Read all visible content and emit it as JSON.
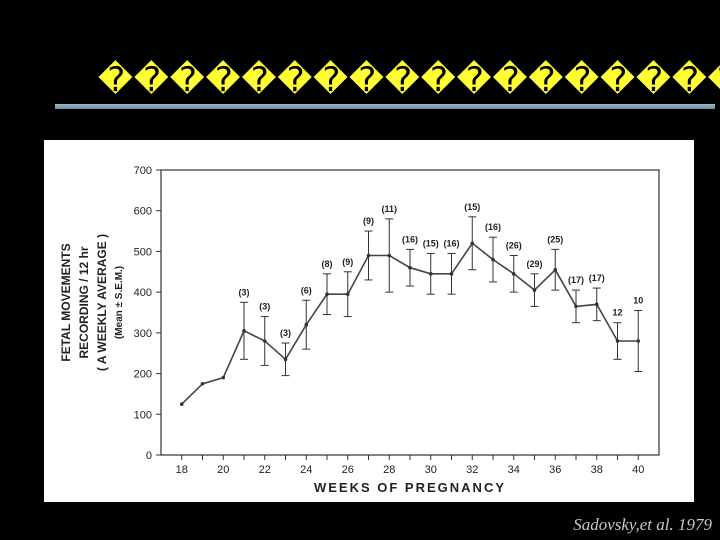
{
  "slide": {
    "title": "�����������������������",
    "citation": "Sadovsky,et al. 1979"
  },
  "chart_data": {
    "type": "line",
    "xlabel": "WEEKS OF PREGNANCY",
    "ylabel_lines": [
      "FETAL MOVEMENTS",
      "RECORDING / 12 hr",
      "( A WEEKLY AVERAGE )",
      "(Mean ± S.E.M.)"
    ],
    "xlim": [
      17,
      41
    ],
    "ylim": [
      0,
      700
    ],
    "x_ticks": [
      18,
      20,
      22,
      24,
      26,
      28,
      30,
      32,
      34,
      36,
      38,
      40
    ],
    "y_ticks": [
      0,
      100,
      200,
      300,
      400,
      500,
      600,
      700
    ],
    "grid": false,
    "series": [
      {
        "x": [
          18,
          19,
          20,
          21,
          22,
          23,
          24,
          25,
          26,
          27,
          28,
          29,
          30,
          31,
          32,
          33,
          34,
          35,
          36,
          37,
          38,
          39,
          40
        ],
        "y": [
          125,
          175,
          190,
          305,
          280,
          235,
          320,
          395,
          395,
          490,
          490,
          460,
          445,
          445,
          520,
          480,
          445,
          405,
          455,
          365,
          370,
          280,
          280
        ],
        "err": [
          0,
          0,
          0,
          70,
          60,
          40,
          60,
          50,
          55,
          60,
          90,
          45,
          50,
          50,
          65,
          55,
          45,
          40,
          50,
          40,
          40,
          45,
          75
        ]
      }
    ],
    "annotations": [
      {
        "x": 21,
        "label": "(3)"
      },
      {
        "x": 22,
        "label": "(3)"
      },
      {
        "x": 23,
        "label": "(3)"
      },
      {
        "x": 24,
        "label": "(6)"
      },
      {
        "x": 25,
        "label": "(8)"
      },
      {
        "x": 26,
        "label": "(9)"
      },
      {
        "x": 27,
        "label": "(9)"
      },
      {
        "x": 28,
        "label": "(11)"
      },
      {
        "x": 29,
        "label": "(16)"
      },
      {
        "x": 30,
        "label": "(15)"
      },
      {
        "x": 31,
        "label": "(16)"
      },
      {
        "x": 32,
        "label": "(15)"
      },
      {
        "x": 33,
        "label": "(16)"
      },
      {
        "x": 34,
        "label": "(26)"
      },
      {
        "x": 35,
        "label": "(29)"
      },
      {
        "x": 36,
        "label": "(25)"
      },
      {
        "x": 37,
        "label": "(17)"
      },
      {
        "x": 38,
        "label": "(17)"
      },
      {
        "x": 39,
        "label": "12"
      },
      {
        "x": 40,
        "label": "10"
      }
    ]
  }
}
